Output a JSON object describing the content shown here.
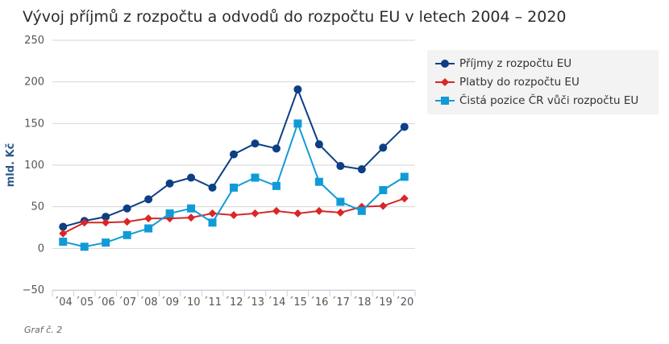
{
  "chart_data": {
    "type": "line",
    "title": "Vývoj příjmů z rozpočtu a odvodů do rozpočtu EU v letech 2004 – 2020",
    "ylabel": "mld. Kč",
    "xlabel": "",
    "ylim": [
      -50,
      250
    ],
    "yticks": [
      -50,
      0,
      50,
      100,
      150,
      200,
      250
    ],
    "categories": [
      "´04",
      "´05",
      "´06",
      "´07",
      "´08",
      "´09",
      "´10",
      "´11",
      "´12",
      "´13",
      "´14",
      "´15",
      "´16",
      "´17",
      "´18",
      "´19",
      "´20"
    ],
    "grid": "horizontal",
    "legend_position": "right",
    "series": [
      {
        "name": "Příjmy z rozpočtu EU",
        "color": "#0d3f85",
        "marker": "circle",
        "values": [
          26,
          33,
          38,
          48,
          59,
          78,
          85,
          73,
          113,
          126,
          120,
          191,
          125,
          99,
          95,
          121,
          146
        ]
      },
      {
        "name": "Platby do rozpočtu EU",
        "color": "#d92626",
        "marker": "diamond",
        "values": [
          18,
          31,
          31,
          32,
          36,
          36,
          37,
          42,
          40,
          42,
          45,
          42,
          45,
          43,
          50,
          51,
          60
        ]
      },
      {
        "name": "Čistá pozice ČR vůči rozpočtu EU",
        "color": "#109bd7",
        "marker": "square",
        "values": [
          8,
          2,
          7,
          16,
          24,
          42,
          48,
          31,
          73,
          85,
          75,
          150,
          80,
          56,
          45,
          70,
          86
        ]
      }
    ]
  },
  "footnote": "Graf č. 2"
}
